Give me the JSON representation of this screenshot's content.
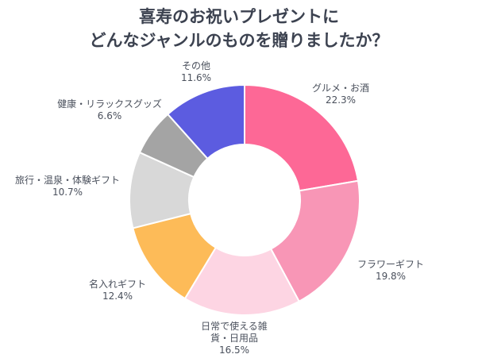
{
  "title_line1": "喜寿のお祝いプレゼントに",
  "title_line2": "どんなジャンルのものを贈りましたか？",
  "chart_data": {
    "type": "pie",
    "donut": true,
    "title": "喜寿のお祝いプレゼントにどんなジャンルのものを贈りましたか？",
    "slices": [
      {
        "label": "グルメ・お酒",
        "value": 22.3,
        "value_text": "22.3%",
        "color": "#fd6896"
      },
      {
        "label": "フラワーギフト",
        "value": 19.8,
        "value_text": "19.8%",
        "color": "#f896b6"
      },
      {
        "label": "日常で使える雑貨・日用品",
        "value": 16.5,
        "value_text": "16.5%",
        "color": "#fdd5e3"
      },
      {
        "label": "名入れギフト",
        "value": 12.4,
        "value_text": "12.4%",
        "color": "#fdbb58"
      },
      {
        "label": "旅行・温泉・体験ギフト",
        "value": 10.7,
        "value_text": "10.7%",
        "color": "#d8d8d8"
      },
      {
        "label": "健康・リラックスグッズ",
        "value": 6.6,
        "value_text": "6.6%",
        "color": "#a4a4a4"
      },
      {
        "label": "その他",
        "value": 11.6,
        "value_text": "11.6%",
        "color": "#5c5ce0"
      }
    ]
  }
}
